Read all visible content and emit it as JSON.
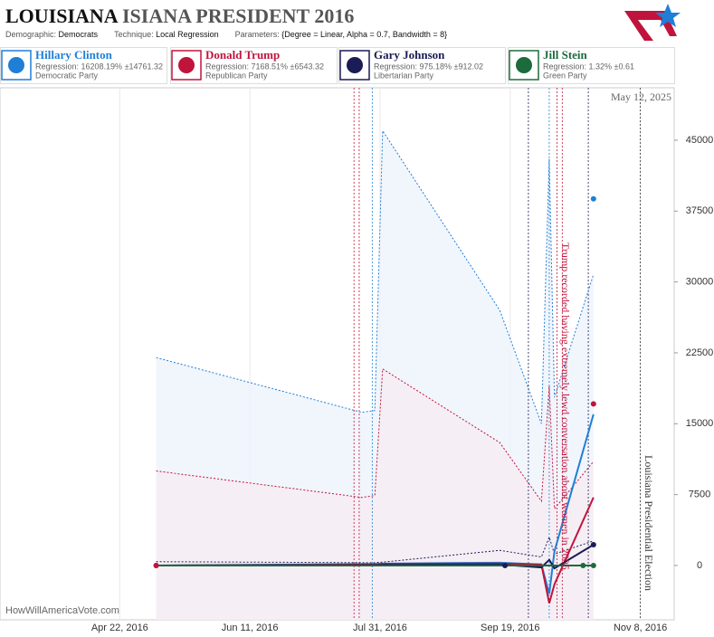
{
  "header": {
    "title_parts": [
      "LOUISIANA",
      "ISIANA PRESIDENT 2016"
    ],
    "meta": [
      [
        "Demographic:",
        "Democrats"
      ],
      [
        "Technique:",
        "Local Regression"
      ],
      [
        "Parameters:",
        "{Degree = Linear, Alpha = 0.7, Bandwidth = 8}"
      ]
    ]
  },
  "chart_data": {
    "type": "line",
    "date_label": "May 12, 2025",
    "watermark": "HowWillAmericaVote.com",
    "x": [
      "2016-05-06",
      "2016-07-24",
      "2016-07-29",
      "2016-08-01",
      "2016-09-15",
      "2016-10-01",
      "2016-10-04",
      "2016-10-06",
      "2016-10-21"
    ],
    "xlim": [
      "2016-03-07",
      "2016-11-21"
    ],
    "xticks": [
      {
        "value": "2016-04-22",
        "label": "Apr 22, 2016"
      },
      {
        "value": "2016-06-11",
        "label": "Jun 11, 2016"
      },
      {
        "value": "2016-07-31",
        "label": "Jul 31, 2016"
      },
      {
        "value": "2016-09-19",
        "label": "Sep 19, 2016"
      },
      {
        "value": "2016-11-08",
        "label": "Nov 8, 2016"
      }
    ],
    "ylim": [
      -5750,
      50550
    ],
    "yticks": [
      0,
      7500,
      15000,
      22500,
      30000,
      37500,
      45000
    ],
    "series": [
      {
        "name": "Hillary Clinton",
        "stat": "Regression: 16208.19% ±14761.32",
        "party": "Democratic Party",
        "color": "#1f7fd6",
        "fill": "#eef3fb",
        "values": [
          0,
          150,
          150,
          200,
          300,
          100,
          -3000,
          1500,
          16000
        ],
        "upper": [
          22000,
          16200,
          16400,
          46000,
          27000,
          15000,
          43000,
          17800,
          30800
        ],
        "point_x": [
          "2016-05-06",
          "2016-10-21"
        ],
        "point_values": [
          0,
          38800
        ]
      },
      {
        "name": "Donald Trump",
        "stat": "Regression: 7168.51% ±6543.32",
        "party": "Republican Party",
        "color": "#c0143c",
        "fill": "#f6eef3",
        "values": [
          0,
          100,
          100,
          150,
          200,
          100,
          -4000,
          -2000,
          7200
        ],
        "upper": [
          10000,
          7200,
          7400,
          20800,
          13000,
          6800,
          19000,
          6000,
          11000
        ],
        "point_x": [
          "2016-05-06",
          "2016-10-21"
        ],
        "point_values": [
          0,
          17100
        ]
      },
      {
        "name": "Gary Johnson",
        "stat": "Regression: 975.18% ±912.02",
        "party": "Libertarian Party",
        "color": "#1b1b55",
        "fill": "none",
        "values": [
          0,
          50,
          50,
          80,
          100,
          -200,
          600,
          -300,
          2200
        ],
        "upper": [
          400,
          300,
          300,
          350,
          1600,
          900,
          3000,
          1200,
          2600
        ],
        "point_x": [
          "2016-09-17",
          "2016-10-21"
        ],
        "point_values": [
          0,
          2200
        ]
      },
      {
        "name": "Jill Stein",
        "stat": "Regression: 1.32% ±0.61",
        "party": "Green Party",
        "color": "#1d6b3c",
        "fill": "none",
        "values": [
          0,
          0,
          0,
          0,
          0,
          0,
          0,
          0,
          0
        ],
        "upper": [
          0,
          0,
          0,
          0,
          0,
          0,
          0,
          0,
          0
        ],
        "point_x": [
          "2016-10-17",
          "2016-10-21"
        ],
        "point_values": [
          0,
          0
        ]
      }
    ],
    "events": [
      {
        "x": "2016-07-21",
        "color": "#c0143c"
      },
      {
        "x": "2016-07-23",
        "color": "#c0143c"
      },
      {
        "x": "2016-07-28",
        "color": "#1f7fd6"
      },
      {
        "x": "2016-09-26",
        "color": "#1b1b55"
      },
      {
        "x": "2016-10-04",
        "color": "#1f7fd6"
      },
      {
        "x": "2016-10-07",
        "color": "#c0143c"
      },
      {
        "x": "2016-10-09",
        "color": "#c0143c"
      },
      {
        "x": "2016-10-19",
        "color": "#1b1b55"
      },
      {
        "x": "2016-11-08",
        "color": "#333333"
      }
    ],
    "annotations": [
      {
        "text": "Trump recorded having extremely lewd conversation about women in 2005",
        "x": "2016-10-07",
        "color": "#c0143c"
      },
      {
        "text": "Louisiana Presidential Election",
        "x": "2016-11-08",
        "color": "#333333"
      }
    ]
  }
}
